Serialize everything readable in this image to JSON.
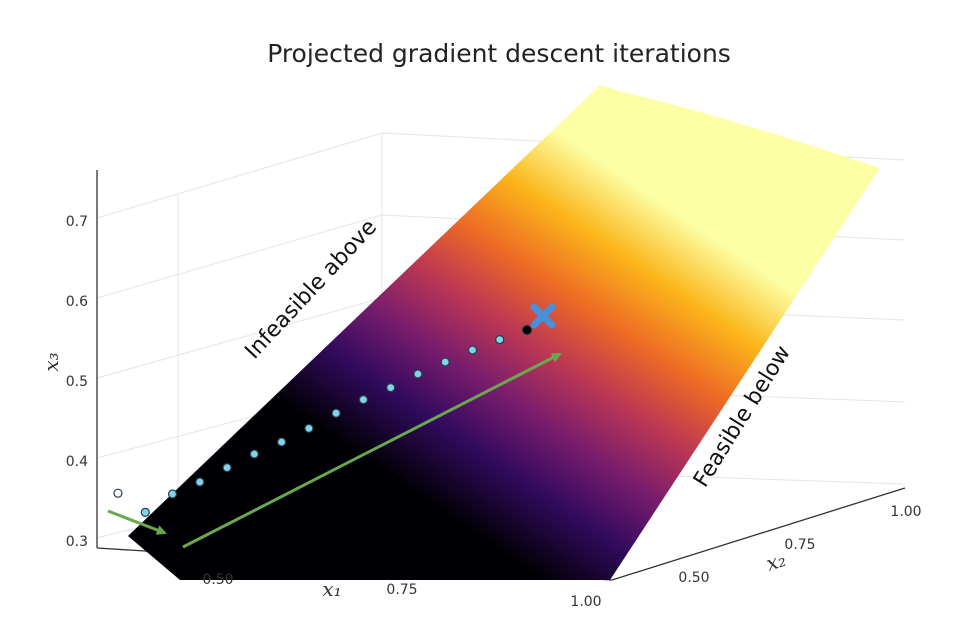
{
  "chart_data": {
    "type": "surface3d",
    "title": "Projected gradient descent iterations",
    "axes": {
      "x1": {
        "label": "x₁",
        "ticks": [
          "0.50",
          "0.75",
          "1.00"
        ]
      },
      "x2": {
        "label": "x₂",
        "ticks": [
          "0.50",
          "0.75",
          "1.00"
        ]
      },
      "x3": {
        "label": "x₃",
        "ticks": [
          "0.3",
          "0.4",
          "0.5",
          "0.6",
          "0.7"
        ],
        "range": [
          0.29,
          0.76
        ]
      }
    },
    "colormap": "inferno",
    "annotations": [
      "Infeasible above",
      "Feasible below"
    ],
    "iterates": [
      {
        "x3": 0.356,
        "projected": false
      },
      {
        "x3": 0.332
      },
      {
        "x3": 0.355
      },
      {
        "x3": 0.37
      },
      {
        "x3": 0.388
      },
      {
        "x3": 0.405
      },
      {
        "x3": 0.42
      },
      {
        "x3": 0.437
      },
      {
        "x3": 0.456
      },
      {
        "x3": 0.473
      },
      {
        "x3": 0.488
      },
      {
        "x3": 0.505
      },
      {
        "x3": 0.52
      },
      {
        "x3": 0.535
      },
      {
        "x3": 0.548
      },
      {
        "x3": 0.56
      }
    ],
    "optimum_marker": "x-mark",
    "grid": true
  },
  "colors": {
    "iterate_fill": "#7fd3ea",
    "iterate_edge": "#2b3b48",
    "start_fill": "#ffffff",
    "final_fill": "#000000",
    "optimum": "#4a90d9",
    "arrow": "#6aa84f",
    "surface_stops": [
      "#000004",
      "#320a5e",
      "#781c6d",
      "#bc3754",
      "#ed6925",
      "#fbb61a",
      "#fcffa4"
    ]
  }
}
